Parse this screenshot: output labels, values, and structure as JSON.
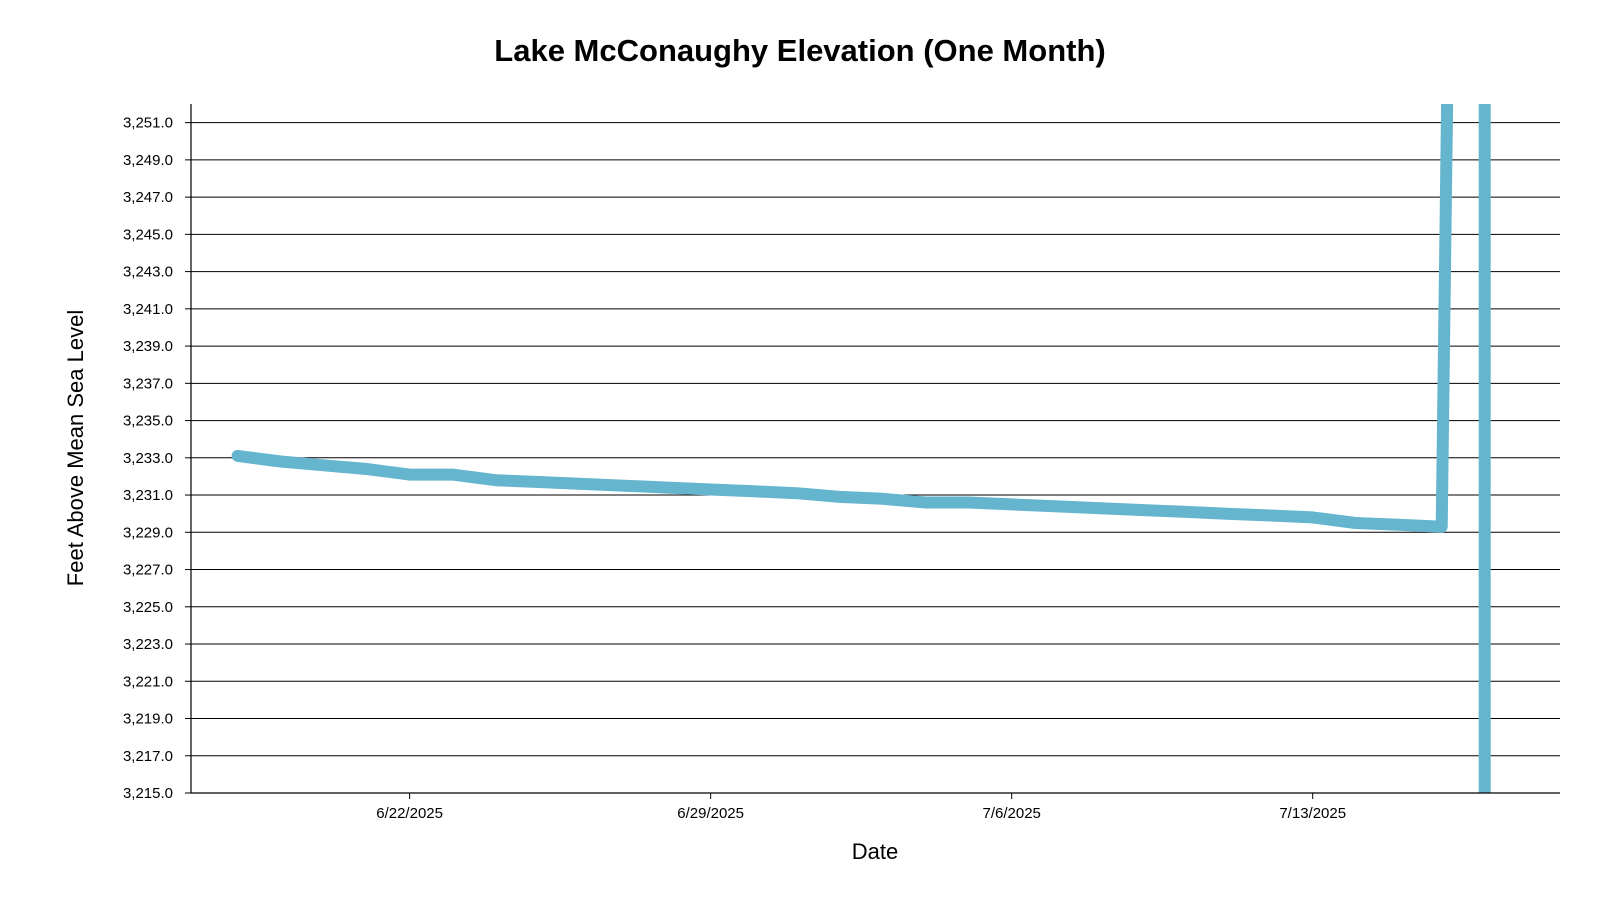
{
  "chart_data": {
    "type": "line",
    "title": "Lake McConaughy Elevation (One Month)",
    "xlabel": "Date",
    "ylabel": "Feet Above Mean Sea Level",
    "x_ticks": [
      "6/22/2025",
      "6/29/2025",
      "7/6/2025",
      "7/13/2025"
    ],
    "y_ticks": [
      "3,215.0",
      "3,217.0",
      "3,219.0",
      "3,221.0",
      "3,223.0",
      "3,225.0",
      "3,227.0",
      "3,229.0",
      "3,231.0",
      "3,233.0",
      "3,235.0",
      "3,237.0",
      "3,239.0",
      "3,241.0",
      "3,243.0",
      "3,245.0",
      "3,247.0",
      "3,249.0",
      "3,251.0"
    ],
    "ylim": [
      3215,
      3252
    ],
    "xlim": [
      "2025-06-16 22:00",
      "2025-07-18 18:00"
    ],
    "grid": true,
    "series": [
      {
        "color": "#64b5cd",
        "points": [
          [
            "2025-06-18 00:00",
            3233.1
          ],
          [
            "2025-06-19 00:00",
            3232.8
          ],
          [
            "2025-06-20 00:00",
            3232.6
          ],
          [
            "2025-06-21 00:00",
            3232.4
          ],
          [
            "2025-06-22 00:00",
            3232.1
          ],
          [
            "2025-06-23 00:00",
            3232.1
          ],
          [
            "2025-06-24 00:00",
            3231.8
          ],
          [
            "2025-06-25 00:00",
            3231.7
          ],
          [
            "2025-06-26 00:00",
            3231.6
          ],
          [
            "2025-06-27 00:00",
            3231.5
          ],
          [
            "2025-06-28 00:00",
            3231.4
          ],
          [
            "2025-06-29 00:00",
            3231.3
          ],
          [
            "2025-06-30 00:00",
            3231.2
          ],
          [
            "2025-07-01 00:00",
            3231.1
          ],
          [
            "2025-07-02 00:00",
            3230.9
          ],
          [
            "2025-07-03 00:00",
            3230.8
          ],
          [
            "2025-07-04 00:00",
            3230.6
          ],
          [
            "2025-07-05 00:00",
            3230.6
          ],
          [
            "2025-07-06 00:00",
            3230.5
          ],
          [
            "2025-07-07 00:00",
            3230.4
          ],
          [
            "2025-07-08 00:00",
            3230.3
          ],
          [
            "2025-07-09 00:00",
            3230.2
          ],
          [
            "2025-07-10 00:00",
            3230.1
          ],
          [
            "2025-07-11 00:00",
            3230.0
          ],
          [
            "2025-07-12 00:00",
            3229.9
          ],
          [
            "2025-07-13 00:00",
            3229.8
          ],
          [
            "2025-07-14 00:00",
            3229.5
          ],
          [
            "2025-07-15 00:00",
            3229.4
          ],
          [
            "2025-07-16 00:00",
            3229.3
          ],
          [
            "2025-07-16 03:00",
            3252.0
          ]
        ]
      },
      {
        "color": "#64b5cd",
        "points": [
          [
            "2025-07-17 00:00",
            3252.0
          ],
          [
            "2025-07-17 00:00",
            3215.0
          ]
        ]
      }
    ]
  }
}
